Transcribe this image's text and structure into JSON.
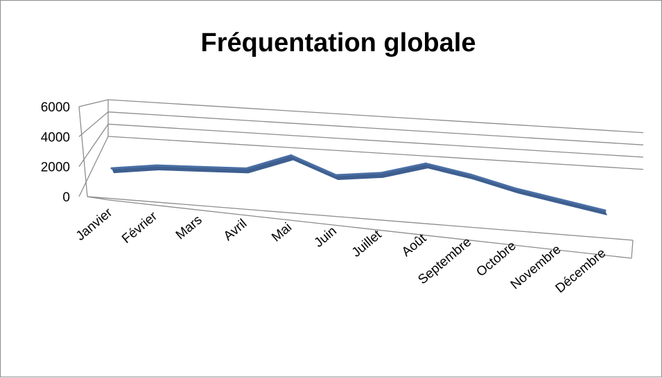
{
  "chart_data": {
    "type": "line",
    "title": "Fréquentation globale",
    "categories": [
      "Janvier",
      "Février",
      "Mars",
      "Avril",
      "Mai",
      "Juin",
      "Juillet",
      "Août",
      "Septembre",
      "Octobre",
      "Novembre",
      "Décembre"
    ],
    "series": [
      {
        "values": [
          1500,
          2400,
          2700,
          3000,
          5300,
          3100,
          3900,
          5700,
          4700,
          3300,
          2300,
          1300
        ]
      }
    ],
    "xlabel": "",
    "ylabel": "",
    "ylim": [
      0,
      6000
    ],
    "yticks": [
      0,
      2000,
      4000,
      6000
    ],
    "yticks_labels": [
      "0",
      "2000",
      "4000",
      "6000"
    ],
    "grid": true,
    "legend": "none",
    "style": "3d-line",
    "colors": {
      "line": "#4a6fa5",
      "line_dark": "#34568a",
      "grid": "#8c8c8c"
    }
  }
}
